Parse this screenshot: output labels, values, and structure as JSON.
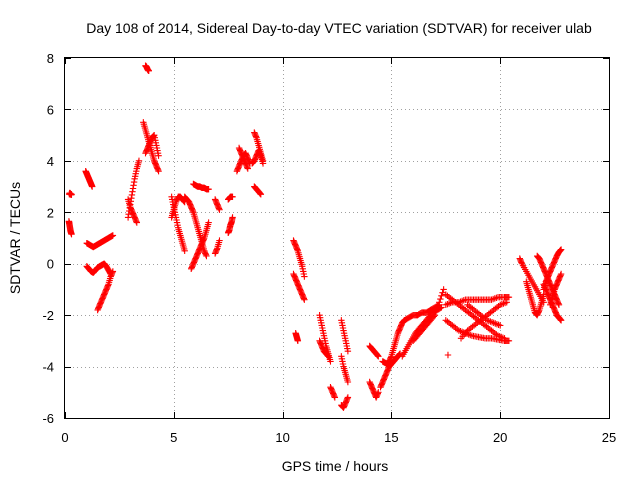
{
  "chart_data": {
    "type": "scatter",
    "title": "Day 108 of 2014, Sidereal Day-to-day VTEC variation (SDTVAR) for receiver ulab",
    "xlabel": "GPS time / hours",
    "ylabel": "SDTVAR / TECUs",
    "xlim": [
      0,
      25
    ],
    "ylim": [
      -6,
      8
    ],
    "xticks": [
      0,
      5,
      10,
      15,
      20,
      25
    ],
    "yticks": [
      -6,
      -4,
      -2,
      0,
      2,
      4,
      6,
      8
    ],
    "xtick_labels": [
      "0",
      "5",
      "10",
      "15",
      "20",
      "25"
    ],
    "ytick_labels": [
      "-6",
      "-4",
      "-2",
      "0",
      "2",
      "4",
      "6",
      "8"
    ],
    "grid": true,
    "marker": "+",
    "colors": {
      "series": "#ff0000",
      "grid": "#a0a0a0"
    },
    "series": [
      {
        "name": "SDTVAR",
        "segments": [
          {
            "x": [
              0.2,
              0.22,
              0.25,
              0.28,
              0.3
            ],
            "y": [
              2.7,
              2.75,
              2.72,
              2.68,
              2.7
            ]
          },
          {
            "x": [
              0.18,
              0.2,
              0.23,
              0.26,
              0.3
            ],
            "y": [
              1.65,
              1.55,
              1.4,
              1.25,
              1.15
            ]
          },
          {
            "x": [
              0.95,
              1.0,
              1.05,
              1.1,
              1.15,
              1.2,
              1.25
            ],
            "y": [
              3.6,
              3.5,
              3.4,
              3.3,
              3.2,
              3.1,
              3.0
            ]
          },
          {
            "x": [
              1.0,
              1.1,
              1.2,
              1.3,
              1.4,
              1.5,
              1.6,
              1.7,
              1.8,
              1.9,
              2.0,
              2.1,
              2.2
            ],
            "y": [
              0.8,
              0.75,
              0.7,
              0.65,
              0.7,
              0.75,
              0.8,
              0.85,
              0.9,
              0.95,
              1.0,
              1.05,
              1.1
            ]
          },
          {
            "x": [
              1.0,
              1.1,
              1.2,
              1.3,
              1.4,
              1.5,
              1.6,
              1.7
            ],
            "y": [
              -0.1,
              -0.2,
              -0.3,
              -0.35,
              -0.25,
              -0.15,
              -0.1,
              -0.05
            ]
          },
          {
            "x": [
              1.5,
              1.6,
              1.7,
              1.8,
              1.9,
              2.0,
              2.1,
              2.2
            ],
            "y": [
              -1.8,
              -1.6,
              -1.4,
              -1.2,
              -1.0,
              -0.8,
              -0.5,
              -0.3
            ]
          },
          {
            "x": [
              1.6,
              1.7,
              1.8,
              1.9,
              2.0,
              2.1
            ],
            "y": [
              -0.1,
              -0.05,
              0.0,
              -0.1,
              -0.25,
              -0.4
            ]
          },
          {
            "x": [
              2.9,
              3.0,
              3.1,
              3.2,
              3.3,
              3.4
            ],
            "y": [
              1.8,
              2.3,
              2.8,
              3.3,
              3.7,
              4.0
            ]
          },
          {
            "x": [
              2.9,
              3.0,
              3.1,
              3.2,
              3.3
            ],
            "y": [
              2.5,
              2.2,
              2.0,
              1.8,
              1.6
            ]
          },
          {
            "x": [
              3.7,
              3.75,
              3.8,
              3.85
            ],
            "y": [
              7.7,
              7.65,
              7.55,
              7.5
            ]
          },
          {
            "x": [
              3.6,
              3.7,
              3.8,
              3.9,
              4.0,
              4.1,
              4.2,
              4.3
            ],
            "y": [
              5.5,
              5.2,
              4.9,
              4.6,
              4.3,
              4.0,
              3.8,
              3.6
            ]
          },
          {
            "x": [
              3.7,
              3.8,
              3.9,
              4.0,
              4.1,
              4.2,
              4.3
            ],
            "y": [
              4.3,
              4.5,
              4.7,
              4.9,
              5.0,
              4.6,
              4.2
            ]
          },
          {
            "x": [
              4.9,
              5.0,
              5.1,
              5.2,
              5.3,
              5.4,
              5.5
            ],
            "y": [
              2.6,
              2.2,
              1.8,
              1.4,
              1.1,
              0.8,
              0.5
            ]
          },
          {
            "x": [
              4.9,
              5.0,
              5.1,
              5.2,
              5.3,
              5.4,
              5.5
            ],
            "y": [
              1.8,
              2.1,
              2.4,
              2.6,
              2.6,
              2.5,
              2.4
            ]
          },
          {
            "x": [
              5.5,
              5.6,
              5.7,
              5.8,
              5.9,
              6.0,
              6.1,
              6.2,
              6.3,
              6.4,
              6.5
            ],
            "y": [
              2.6,
              2.5,
              2.4,
              2.2,
              2.0,
              1.7,
              1.4,
              1.1,
              0.8,
              0.5,
              0.3
            ]
          },
          {
            "x": [
              5.9,
              6.0,
              6.1,
              6.2,
              6.3,
              6.4,
              6.5,
              6.6
            ],
            "y": [
              3.1,
              3.05,
              3.0,
              3.0,
              2.95,
              2.95,
              2.9,
              2.9
            ]
          },
          {
            "x": [
              5.8,
              5.9,
              6.0,
              6.1,
              6.2,
              6.3,
              6.4,
              6.5,
              6.6
            ],
            "y": [
              -0.2,
              0.0,
              0.2,
              0.4,
              0.6,
              0.8,
              1.0,
              1.3,
              1.6
            ]
          },
          {
            "x": [
              6.9,
              7.0,
              7.1
            ],
            "y": [
              2.5,
              2.3,
              2.1
            ]
          },
          {
            "x": [
              6.9,
              7.0,
              7.1
            ],
            "y": [
              0.4,
              0.6,
              0.9
            ]
          },
          {
            "x": [
              7.5,
              7.55,
              7.6,
              7.65,
              7.7
            ],
            "y": [
              1.2,
              1.3,
              1.5,
              1.6,
              1.8
            ]
          },
          {
            "x": [
              7.5,
              7.6,
              7.7
            ],
            "y": [
              2.5,
              2.6,
              2.6
            ]
          },
          {
            "x": [
              7.9,
              8.0,
              8.1,
              8.2,
              8.3,
              8.4,
              8.5
            ],
            "y": [
              3.6,
              3.8,
              4.0,
              4.2,
              4.3,
              4.1,
              3.9
            ]
          },
          {
            "x": [
              8.0,
              8.1,
              8.2,
              8.3,
              8.4
            ],
            "y": [
              4.5,
              4.3,
              4.1,
              3.9,
              3.7
            ]
          },
          {
            "x": [
              8.7,
              8.8,
              8.9,
              9.0,
              9.1
            ],
            "y": [
              5.1,
              4.9,
              4.6,
              4.3,
              4.0
            ]
          },
          {
            "x": [
              8.6,
              8.7,
              8.8,
              8.9,
              9.0,
              9.1
            ],
            "y": [
              3.9,
              4.0,
              4.2,
              4.4,
              4.2,
              3.9
            ]
          },
          {
            "x": [
              8.7,
              8.8,
              8.9,
              9.0
            ],
            "y": [
              3.0,
              2.9,
              2.8,
              2.7
            ]
          },
          {
            "x": [
              10.5,
              10.6,
              10.7,
              10.8,
              10.9,
              11.0
            ],
            "y": [
              0.9,
              0.7,
              0.5,
              0.2,
              -0.1,
              -0.5
            ]
          },
          {
            "x": [
              10.5,
              10.6,
              10.7,
              10.8,
              10.9,
              11.0
            ],
            "y": [
              -0.4,
              -0.6,
              -0.8,
              -1.0,
              -1.2,
              -1.4
            ]
          },
          {
            "x": [
              10.6,
              10.65,
              10.7
            ],
            "y": [
              -2.7,
              -2.85,
              -3.0
            ]
          },
          {
            "x": [
              11.7,
              11.8,
              11.9,
              12.0,
              12.1,
              12.2
            ],
            "y": [
              -2.0,
              -2.4,
              -2.8,
              -3.2,
              -3.5,
              -3.8
            ]
          },
          {
            "x": [
              11.7,
              11.8,
              11.9,
              12.0,
              12.1
            ],
            "y": [
              -3.0,
              -3.2,
              -3.4,
              -3.5,
              -3.6
            ]
          },
          {
            "x": [
              12.2,
              12.3,
              12.4
            ],
            "y": [
              -4.8,
              -5.0,
              -5.2
            ]
          },
          {
            "x": [
              12.7,
              12.8,
              12.9,
              13.0
            ],
            "y": [
              -2.2,
              -2.6,
              -3.0,
              -3.4
            ]
          },
          {
            "x": [
              12.7,
              12.8,
              12.9,
              13.0
            ],
            "y": [
              -3.6,
              -4.0,
              -4.3,
              -4.6
            ]
          },
          {
            "x": [
              12.7,
              12.8,
              12.9,
              13.0
            ],
            "y": [
              -5.5,
              -5.6,
              -5.4,
              -5.2
            ]
          },
          {
            "x": [
              14.0,
              14.1,
              14.2,
              14.3,
              14.4
            ],
            "y": [
              -3.2,
              -3.3,
              -3.4,
              -3.5,
              -3.6
            ]
          },
          {
            "x": [
              14.0,
              14.1,
              14.2,
              14.3,
              14.4
            ],
            "y": [
              -4.6,
              -4.8,
              -5.0,
              -5.2,
              -5.0
            ]
          },
          {
            "x": [
              14.5,
              14.6,
              14.7,
              14.8,
              14.9,
              15.0,
              15.1,
              15.2,
              15.3,
              15.4
            ],
            "y": [
              -4.8,
              -4.6,
              -4.4,
              -4.2,
              -4.0,
              -3.9,
              -3.8,
              -3.7,
              -3.6,
              -3.5
            ]
          },
          {
            "x": [
              14.6,
              14.7,
              14.8,
              14.9,
              15.0,
              15.1,
              15.2,
              15.3,
              15.4,
              15.5,
              15.6
            ],
            "y": [
              -3.8,
              -3.85,
              -3.9,
              -3.8,
              -3.6,
              -3.3,
              -3.0,
              -2.7,
              -2.5,
              -2.3,
              -2.2
            ]
          },
          {
            "x": [
              15.5,
              15.7,
              15.9,
              16.1,
              16.3,
              16.5,
              16.7,
              16.9,
              17.1,
              17.3
            ],
            "y": [
              -3.6,
              -3.3,
              -3.0,
              -2.7,
              -2.5,
              -2.3,
              -2.1,
              -1.9,
              -1.8,
              -1.7
            ]
          },
          {
            "x": [
              15.6,
              15.8,
              16.0,
              16.2,
              16.4,
              16.6,
              16.8,
              17.0,
              17.2
            ],
            "y": [
              -2.2,
              -2.1,
              -2.0,
              -2.0,
              -1.9,
              -1.9,
              -1.8,
              -1.7,
              -1.6
            ]
          },
          {
            "x": [
              16.0,
              16.2,
              16.4,
              16.6,
              16.8,
              17.0,
              17.2,
              17.4
            ],
            "y": [
              -3.0,
              -2.8,
              -2.6,
              -2.4,
              -2.2,
              -2.0,
              -1.5,
              -1.0
            ]
          },
          {
            "x": [
              17.6
            ],
            "y": [
              -3.55
            ]
          },
          {
            "x": [
              17.5,
              17.8,
              18.1,
              18.4,
              18.7,
              19.0,
              19.3,
              19.6,
              19.9,
              20.2,
              20.4
            ],
            "y": [
              -2.2,
              -2.4,
              -2.6,
              -2.7,
              -2.8,
              -2.85,
              -2.9,
              -2.9,
              -2.95,
              -3.0,
              -3.0
            ]
          },
          {
            "x": [
              17.5,
              17.8,
              18.1,
              18.4,
              18.7,
              19.0,
              19.3,
              19.6,
              19.9,
              20.2
            ],
            "y": [
              -1.2,
              -1.4,
              -1.6,
              -1.8,
              -2.0,
              -2.2,
              -2.4,
              -2.6,
              -2.8,
              -2.9
            ]
          },
          {
            "x": [
              17.5,
              17.8,
              18.1,
              18.4,
              18.7,
              19.0,
              19.3,
              19.6,
              19.9,
              20.2,
              20.4
            ],
            "y": [
              -1.6,
              -1.5,
              -1.5,
              -1.4,
              -1.4,
              -1.4,
              -1.4,
              -1.4,
              -1.3,
              -1.3,
              -1.3
            ]
          },
          {
            "x": [
              18.2,
              18.5,
              18.8,
              19.1,
              19.4,
              19.7,
              20.0,
              20.3
            ],
            "y": [
              -2.9,
              -2.6,
              -2.4,
              -2.2,
              -2.0,
              -1.8,
              -1.6,
              -1.5
            ]
          },
          {
            "x": [
              18.5,
              18.8,
              19.1,
              19.4,
              19.7,
              20.0
            ],
            "y": [
              -1.6,
              -1.8,
              -2.0,
              -2.2,
              -2.3,
              -2.4
            ]
          },
          {
            "x": [
              20.9,
              21.0,
              21.2,
              21.4,
              21.6,
              21.8,
              22.0
            ],
            "y": [
              0.2,
              0.0,
              -0.3,
              -0.6,
              -0.9,
              -1.2,
              -1.5
            ]
          },
          {
            "x": [
              21.2,
              21.3,
              21.4,
              21.5,
              21.6,
              21.7,
              21.8,
              21.9,
              22.0
            ],
            "y": [
              -0.7,
              -1.0,
              -1.3,
              -1.6,
              -1.9,
              -2.0,
              -1.8,
              -1.5,
              -1.2
            ]
          },
          {
            "x": [
              21.7,
              21.8,
              21.9,
              22.0,
              22.1,
              22.2,
              22.3,
              22.4,
              22.5,
              22.6,
              22.7
            ],
            "y": [
              0.3,
              0.2,
              0.0,
              -0.2,
              -0.4,
              -0.6,
              -0.8,
              -1.0,
              -1.2,
              -1.4,
              -1.6
            ]
          },
          {
            "x": [
              22.0,
              22.1,
              22.2,
              22.3,
              22.4,
              22.5,
              22.6,
              22.7,
              22.8
            ],
            "y": [
              -1.0,
              -0.7,
              -0.5,
              -0.3,
              -0.1,
              0.1,
              0.3,
              0.45,
              0.55
            ]
          },
          {
            "x": [
              22.0,
              22.1,
              22.2,
              22.3,
              22.4,
              22.5,
              22.6,
              22.7,
              22.8
            ],
            "y": [
              -0.8,
              -1.0,
              -1.2,
              -1.4,
              -1.6,
              -1.8,
              -2.0,
              -2.1,
              -2.2
            ]
          },
          {
            "x": [
              22.3,
              22.4,
              22.5,
              22.6,
              22.7,
              22.8
            ],
            "y": [
              -1.6,
              -1.3,
              -1.0,
              -0.8,
              -0.6,
              -0.4
            ]
          }
        ]
      }
    ]
  }
}
